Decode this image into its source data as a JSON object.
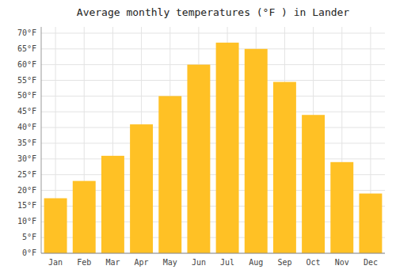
{
  "chart_data": {
    "type": "bar",
    "title": "Average monthly temperatures (°F ) in Lander",
    "categories": [
      "Jan",
      "Feb",
      "Mar",
      "Apr",
      "May",
      "Jun",
      "Jul",
      "Aug",
      "Sep",
      "Oct",
      "Nov",
      "Dec"
    ],
    "values": [
      17.5,
      23,
      31,
      41,
      50,
      60,
      67,
      65,
      54.5,
      44,
      29,
      19
    ],
    "color": "#FFC125",
    "ylim": [
      0,
      72
    ],
    "yticks": [
      {
        "value": 0,
        "label": "0°F"
      },
      {
        "value": 5,
        "label": "5°F"
      },
      {
        "value": 10,
        "label": "10°F"
      },
      {
        "value": 15,
        "label": "15°F"
      },
      {
        "value": 20,
        "label": "20°F"
      },
      {
        "value": 25,
        "label": "25°F"
      },
      {
        "value": 30,
        "label": "30°F"
      },
      {
        "value": 35,
        "label": "35°F"
      },
      {
        "value": 40,
        "label": "40°F"
      },
      {
        "value": 45,
        "label": "45°F"
      },
      {
        "value": 50,
        "label": "50°F"
      },
      {
        "value": 55,
        "label": "55°F"
      },
      {
        "value": 60,
        "label": "60°F"
      },
      {
        "value": 65,
        "label": "65°F"
      },
      {
        "value": 70,
        "label": "70°F"
      }
    ],
    "grid": true
  }
}
